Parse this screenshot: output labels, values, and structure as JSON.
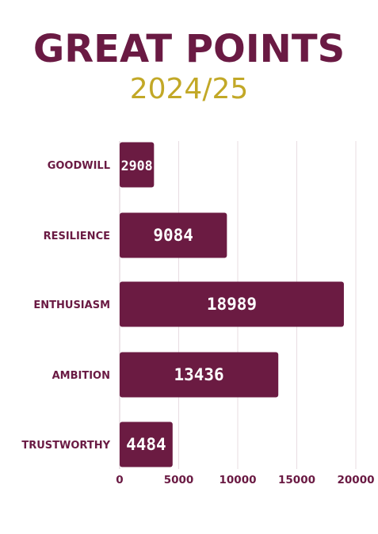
{
  "chart_data": {
    "type": "bar",
    "orientation": "horizontal",
    "title": "GREAT POINTS",
    "subtitle": "2024/25",
    "categories": [
      "GOODWILL",
      "RESILIENCE",
      "ENTHUSIASM",
      "AMBITION",
      "TRUSTWORTHY"
    ],
    "values": [
      2908,
      9084,
      18989,
      13436,
      4484
    ],
    "data_labels": [
      "2908",
      "9084",
      "18989",
      "13436",
      "4484"
    ],
    "xlim": [
      0,
      20000
    ],
    "x_ticks": [
      "0",
      "5000",
      "10000",
      "15000",
      "20000"
    ],
    "grid": true,
    "legend": "none"
  },
  "colors": {
    "bar": "#6b1b42",
    "title": "#6a1a43",
    "subtitle": "#c2a827",
    "label": "#6a1a43",
    "grid": "#e8dde2"
  }
}
